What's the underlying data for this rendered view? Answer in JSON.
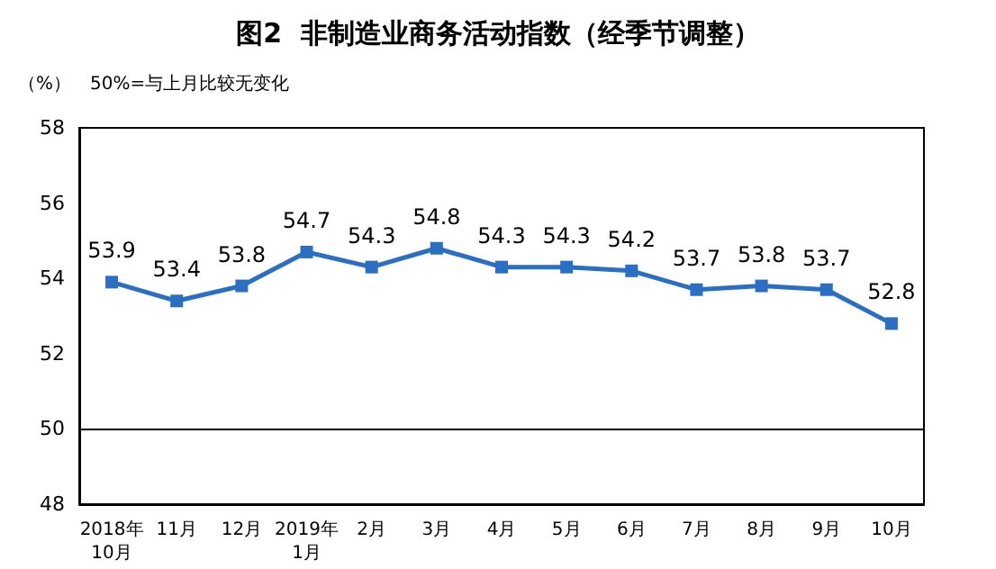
{
  "chart_data": {
    "type": "line",
    "title": "图2  非制造业商务活动指数（经季节调整）",
    "ylabel": "（%）",
    "annotations": [
      "50%=与上月比较无变化"
    ],
    "categories": [
      "2018年\n10月",
      "11月",
      "12月",
      "2019年\n1月",
      "2月",
      "3月",
      "4月",
      "5月",
      "6月",
      "7月",
      "8月",
      "9月",
      "10月"
    ],
    "series": [
      {
        "color": "#2a6fc4",
        "values": [
          53.9,
          53.4,
          53.8,
          54.7,
          54.3,
          54.8,
          54.3,
          54.3,
          54.2,
          53.7,
          53.8,
          53.7,
          52.8
        ]
      }
    ],
    "ylim": [
      48,
      58
    ],
    "yticks": [
      48,
      50,
      52,
      54,
      56,
      58
    ],
    "ref_lines": [
      {
        "axis": "y",
        "value": 50,
        "color": "#000000"
      }
    ],
    "grid": false,
    "marker": "square",
    "line_style": "solid",
    "data_labels": true
  }
}
